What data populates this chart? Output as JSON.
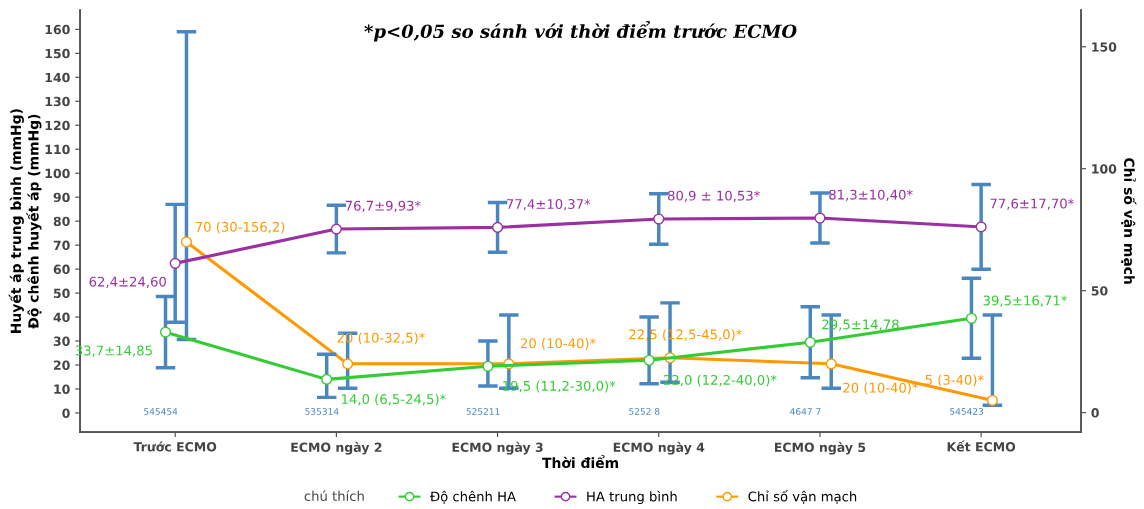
{
  "chart_data": {
    "type": "line",
    "title": "*p<0,05 so sánh với thời điểm trước ECMO",
    "xlabel": "Thời điểm",
    "ylabel": "Huyết áp trung bình (mmHg)\nĐộ chênh huyết áp (mmHg)",
    "y2label": "Chỉ số vận mạch",
    "legend_title": "chú thích",
    "categories": [
      "Trước ECMO",
      "ECMO ngày 2",
      "ECMO ngày 3",
      "ECMO ngày 4",
      "ECMO ngày 5",
      "Kết ECMO"
    ],
    "series": [
      {
        "name": "Độ chênh HA",
        "color": "#33cc33",
        "values": [
          33.7,
          14.0,
          19.5,
          22.0,
          29.5,
          39.5
        ],
        "errors": [
          14.85,
          [
            6.5,
            24.5
          ],
          [
            11.2,
            30.0
          ],
          [
            12.2,
            40.0
          ],
          14.78,
          16.71
        ],
        "value_labels": [
          "33,7±14,85",
          "14,0 (6,5-24,5)*",
          "19,5 (11,2-30,0)*",
          "22,0 (12,2-40,0)*",
          "29,5±14,78",
          "39,5±16,71*"
        ]
      },
      {
        "name": "HA trung bình",
        "color": "#9b30a0",
        "values": [
          62.4,
          76.7,
          77.4,
          80.9,
          81.3,
          77.6
        ],
        "errors": [
          24.6,
          9.93,
          10.37,
          10.53,
          10.4,
          17.7
        ],
        "value_labels": [
          "62,4±24,60",
          "76,7±9,93*",
          "77,4±10,37*",
          "80,9 ± 10,53*",
          "81,3±10,40*",
          "77,6±17,70*"
        ]
      },
      {
        "name": "Chỉ số vận mạch",
        "color": "#ff9900",
        "axis": "y2",
        "values": [
          70,
          20,
          20,
          22.5,
          20,
          5
        ],
        "errors": [
          [
            30,
            156.2
          ],
          [
            10,
            32.5
          ],
          [
            10,
            40
          ],
          [
            12.5,
            45.0
          ],
          [
            10,
            40
          ],
          [
            3,
            40
          ]
        ],
        "value_labels": [
          "70 (30-156,2)",
          "20 (10-32,5)*",
          "20 (10-40)*",
          "22,5 (12,5-45,0)*",
          "20 (10-40)*",
          "5 (3-40)*"
        ]
      }
    ],
    "ylim": [
      -8,
      168
    ],
    "yticks": [
      0,
      10,
      20,
      30,
      40,
      50,
      60,
      70,
      80,
      90,
      100,
      110,
      120,
      130,
      140,
      150,
      160
    ],
    "y2lim": [
      -8,
      165
    ],
    "y2ticks": [
      0,
      50,
      100,
      150
    ],
    "annotations": [
      "545454",
      "535314",
      "525211",
      "5252 8",
      "4647 7",
      "545423"
    ],
    "marker": "circle",
    "line_style": "solid",
    "grid": false,
    "legend": "bottom"
  }
}
